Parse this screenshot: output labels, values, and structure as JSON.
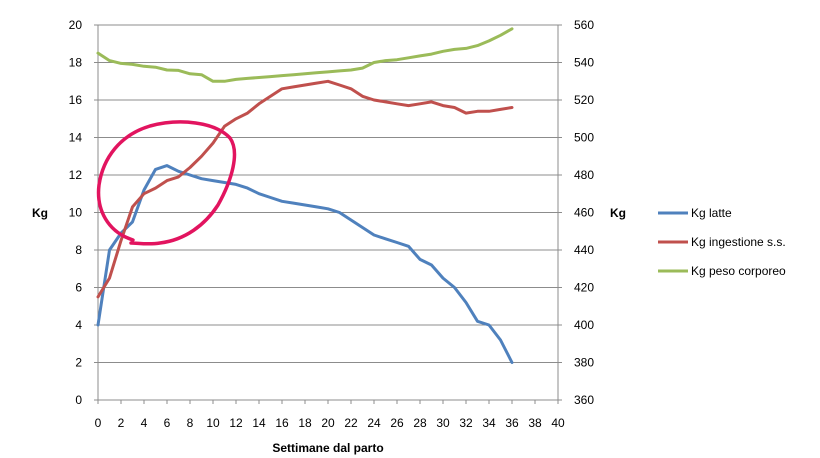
{
  "chart_data": {
    "type": "line",
    "title": "",
    "xlabel": "Settimane dal parto",
    "ylabel_left": "Kg",
    "ylabel_right": "Kg",
    "xlim": [
      0,
      40
    ],
    "ylim_left": [
      0,
      20
    ],
    "ylim_right": [
      360,
      560
    ],
    "x_ticks": [
      "0",
      "2",
      "4",
      "6",
      "8",
      "10",
      "12",
      "14",
      "16",
      "18",
      "20",
      "22",
      "24",
      "26",
      "28",
      "30",
      "32",
      "34",
      "36",
      "38",
      "40"
    ],
    "y_left_ticks": [
      "0",
      "2",
      "4",
      "6",
      "8",
      "10",
      "12",
      "14",
      "16",
      "18",
      "20"
    ],
    "y_right_ticks": [
      "360",
      "380",
      "400",
      "420",
      "440",
      "460",
      "480",
      "500",
      "520",
      "540",
      "560"
    ],
    "grid": true,
    "legend_position": "right",
    "series": [
      {
        "name": "Kg latte",
        "axis": "left",
        "color": "#4f81bd",
        "x": [
          0,
          1,
          2,
          3,
          4,
          5,
          6,
          7,
          8,
          9,
          10,
          11,
          12,
          13,
          14,
          15,
          16,
          17,
          18,
          19,
          20,
          21,
          22,
          23,
          24,
          25,
          26,
          27,
          28,
          29,
          30,
          31,
          32,
          33,
          34,
          35,
          36
        ],
        "y": [
          4.0,
          8.0,
          8.9,
          9.5,
          11.2,
          12.3,
          12.5,
          12.2,
          12.0,
          11.8,
          11.7,
          11.6,
          11.5,
          11.3,
          11.0,
          10.8,
          10.6,
          10.5,
          10.4,
          10.3,
          10.2,
          10.0,
          9.6,
          9.2,
          8.8,
          8.6,
          8.4,
          8.2,
          7.5,
          7.2,
          6.5,
          6.0,
          5.2,
          4.2,
          4.0,
          3.2,
          2.0
        ]
      },
      {
        "name": "Kg ingestione s.s.",
        "axis": "left",
        "color": "#c0504d",
        "x": [
          0,
          1,
          2,
          3,
          4,
          5,
          6,
          7,
          8,
          9,
          10,
          11,
          12,
          13,
          14,
          15,
          16,
          17,
          18,
          19,
          20,
          21,
          22,
          23,
          24,
          25,
          26,
          27,
          28,
          29,
          30,
          31,
          32,
          33,
          34,
          35,
          36
        ],
        "y": [
          5.5,
          6.5,
          8.5,
          10.3,
          11.0,
          11.3,
          11.7,
          11.9,
          12.4,
          13.0,
          13.7,
          14.6,
          15.0,
          15.3,
          15.8,
          16.2,
          16.6,
          16.7,
          16.8,
          16.9,
          17.0,
          16.8,
          16.6,
          16.2,
          16.0,
          15.9,
          15.8,
          15.7,
          15.8,
          15.9,
          15.7,
          15.6,
          15.3,
          15.4,
          15.4,
          15.5,
          15.6
        ]
      },
      {
        "name": "Kg peso corporeo",
        "axis": "right",
        "color": "#9bbb59",
        "x": [
          0,
          1,
          2,
          3,
          4,
          5,
          6,
          7,
          8,
          9,
          10,
          11,
          12,
          13,
          14,
          15,
          16,
          17,
          18,
          19,
          20,
          21,
          22,
          23,
          24,
          25,
          26,
          27,
          28,
          29,
          30,
          31,
          32,
          33,
          34,
          35,
          36
        ],
        "y": [
          545,
          541,
          539.5,
          539,
          538,
          537.5,
          536,
          535.8,
          534,
          533.5,
          530,
          530,
          531,
          531.5,
          532,
          532.5,
          533,
          533.5,
          534,
          534.5,
          535,
          535.5,
          536,
          537,
          540,
          541,
          541.5,
          542.5,
          543.5,
          544.5,
          546,
          547,
          547.5,
          549,
          551.5,
          554.5,
          558
        ]
      }
    ],
    "annotation": {
      "shape": "freehand-ellipse",
      "color": "#e2145f"
    }
  }
}
